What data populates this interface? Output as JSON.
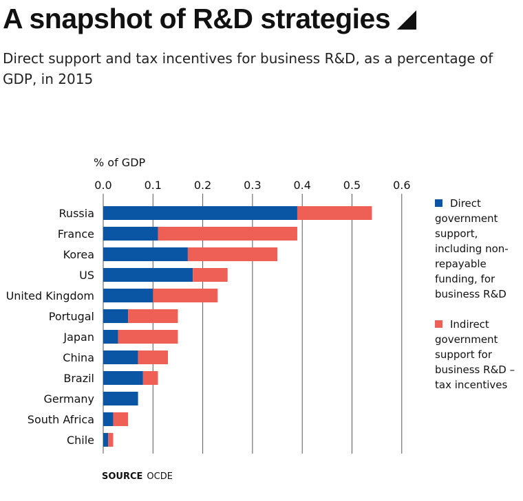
{
  "title": "A snapshot of R&D strategies",
  "title_icon": "triangle-corner-icon",
  "subtitle": "Direct support and tax incentives for business R&D, as a percentage of GDP, in 2015",
  "source": {
    "label": "SOURCE",
    "text": "OCDE"
  },
  "colors": {
    "direct": "#0a56a4",
    "indirect": "#ee6055",
    "grid": "#555555"
  },
  "legend": {
    "direct": "Direct government support, including non-repayable funding, for business R&D",
    "indirect": "Indirect government support for business R&D – tax incentives"
  },
  "chart_data": {
    "type": "bar",
    "orientation": "horizontal",
    "stacked": true,
    "xlabel": "% of GDP",
    "xlim": [
      0,
      0.6
    ],
    "xticks": [
      "0.0",
      "0.1",
      "0.2",
      "0.3",
      "0.4",
      "0.5",
      "0.6"
    ],
    "grid": true,
    "legend_position": "right",
    "categories": [
      "Russia",
      "France",
      "Korea",
      "US",
      "United Kingdom",
      "Portugal",
      "Japan",
      "China",
      "Brazil",
      "Germany",
      "South Africa",
      "Chile"
    ],
    "series": [
      {
        "name": "Direct government support, including non-repayable funding, for business R&D",
        "values": [
          0.39,
          0.11,
          0.17,
          0.18,
          0.1,
          0.05,
          0.03,
          0.07,
          0.08,
          0.07,
          0.02,
          0.01
        ]
      },
      {
        "name": "Indirect government support for business R&D – tax incentives",
        "values": [
          0.15,
          0.28,
          0.18,
          0.07,
          0.13,
          0.1,
          0.12,
          0.06,
          0.03,
          0.0,
          0.03,
          0.01
        ]
      }
    ]
  }
}
